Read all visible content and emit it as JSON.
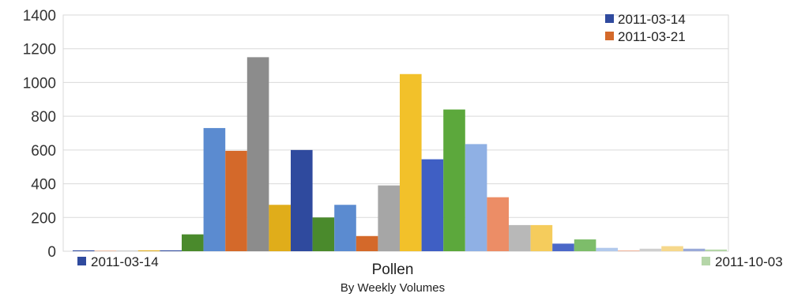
{
  "chart_data": {
    "type": "bar",
    "title": "Pollen",
    "subtitle": "By Weekly Volumes",
    "ylim": [
      0,
      1400
    ],
    "yticks": [
      0,
      200,
      400,
      600,
      800,
      1000,
      1200,
      1400
    ],
    "grid": true,
    "legend_top": [
      {
        "label": "2011-03-14",
        "color": "#2f4a9e"
      },
      {
        "label": "2011-03-21",
        "color": "#d4692a"
      }
    ],
    "axis_start_label": "2011-03-14",
    "axis_start_color": "#2f4a9e",
    "axis_end_label": "2011-10-03",
    "axis_end_color": "#b5d6a8",
    "bars": [
      {
        "value": 5,
        "color": "#2f4a9e"
      },
      {
        "value": 2,
        "color": "#d4692a"
      },
      {
        "value": 2,
        "color": "#8c8c8c"
      },
      {
        "value": 5,
        "color": "#e0ad1a"
      },
      {
        "value": 5,
        "color": "#2f4a9e"
      },
      {
        "value": 100,
        "color": "#4a8a2c"
      },
      {
        "value": 730,
        "color": "#5b8bd0"
      },
      {
        "value": 595,
        "color": "#d4692a"
      },
      {
        "value": 1150,
        "color": "#8c8c8c"
      },
      {
        "value": 275,
        "color": "#e0ad1a"
      },
      {
        "value": 600,
        "color": "#2f4a9e"
      },
      {
        "value": 200,
        "color": "#4a8a2c"
      },
      {
        "value": 275,
        "color": "#5b8bd0"
      },
      {
        "value": 90,
        "color": "#d4692a"
      },
      {
        "value": 390,
        "color": "#a6a6a6"
      },
      {
        "value": 1050,
        "color": "#f2c12a"
      },
      {
        "value": 545,
        "color": "#3f5fc4"
      },
      {
        "value": 840,
        "color": "#5ca83c"
      },
      {
        "value": 635,
        "color": "#8fb0e4"
      },
      {
        "value": 320,
        "color": "#ec8d66"
      },
      {
        "value": 155,
        "color": "#b8b8b8"
      },
      {
        "value": 155,
        "color": "#f5cc5c"
      },
      {
        "value": 45,
        "color": "#4b68c8"
      },
      {
        "value": 70,
        "color": "#7dbd6a"
      },
      {
        "value": 20,
        "color": "#b2c9ec"
      },
      {
        "value": 5,
        "color": "#f0b49c"
      },
      {
        "value": 15,
        "color": "#cfcfcf"
      },
      {
        "value": 30,
        "color": "#f6d88c"
      },
      {
        "value": 15,
        "color": "#9aaad8"
      },
      {
        "value": 10,
        "color": "#b5d6a8"
      }
    ]
  }
}
